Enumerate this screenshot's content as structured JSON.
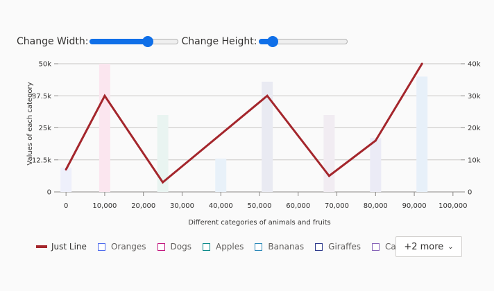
{
  "controls": {
    "width_label": "Change Width:",
    "width_value": 0.65,
    "height_label": "Change Height:",
    "height_value": 0.16
  },
  "chart_data": {
    "type": "bar",
    "xlabel": "Different categories of animals and fruits",
    "ylabel": "Values of each category",
    "x_ticks": [
      "0",
      "10,000",
      "20,000",
      "30,000",
      "40,000",
      "50,000",
      "60,000",
      "70,000",
      "80,000",
      "90,000",
      "100,000"
    ],
    "x_range": [
      -2000,
      102000
    ],
    "y_ticks": [
      "0",
      "12.5k",
      "25k",
      "37.5k",
      "50k"
    ],
    "ylim": [
      0,
      50000
    ],
    "y2_ticks": [
      "0",
      "10k",
      "20k",
      "30k",
      "40k"
    ],
    "y2lim": [
      0,
      40000
    ],
    "grid": true,
    "legend_position": "bottom",
    "bars": [
      {
        "name": "Oranges",
        "x": 0,
        "value": 9500,
        "color": "#eef0fb"
      },
      {
        "name": "Dogs",
        "x": 10000,
        "value": 50000,
        "color": "#fbe6ef"
      },
      {
        "name": "Apples",
        "x": 25000,
        "value": 30000,
        "color": "#e9f4f1"
      },
      {
        "name": "Bananas",
        "x": 40000,
        "value": 13000,
        "color": "#e8f1f9"
      },
      {
        "name": "Giraffes",
        "x": 52000,
        "value": 43000,
        "color": "#e9eaf2"
      },
      {
        "name": "Cats",
        "x": 68000,
        "value": 30000,
        "color": "#f1ecf2"
      },
      {
        "name": "",
        "x": 80000,
        "value": 21000,
        "color": "#ebebf6"
      },
      {
        "name": "",
        "x": 92000,
        "value": 45000,
        "color": "#e7f0f9"
      }
    ],
    "line": {
      "name": "Just Line",
      "color": "#a4262c",
      "points": [
        {
          "x": 0,
          "y": 7000
        },
        {
          "x": 10000,
          "y": 30000
        },
        {
          "x": 25000,
          "y": 3000
        },
        {
          "x": 52000,
          "y": 30000
        },
        {
          "x": 68000,
          "y": 5000
        },
        {
          "x": 80000,
          "y": 16000
        },
        {
          "x": 92000,
          "y": 40000
        }
      ]
    }
  },
  "legend": {
    "items": [
      {
        "label": "Just Line",
        "kind": "line",
        "color": "#a4262c"
      },
      {
        "label": "Oranges",
        "kind": "box",
        "color": "#4f6bed"
      },
      {
        "label": "Dogs",
        "kind": "box",
        "color": "#c2187e"
      },
      {
        "label": "Apples",
        "kind": "box",
        "color": "#0b8a8a"
      },
      {
        "label": "Bananas",
        "kind": "box",
        "color": "#2b88b8"
      },
      {
        "label": "Giraffes",
        "kind": "box",
        "color": "#2e3a8c"
      },
      {
        "label": "Cats",
        "kind": "box",
        "color": "#8764b8"
      }
    ],
    "more_label": "+2 more",
    "more_icon": "chevron-down-icon"
  }
}
